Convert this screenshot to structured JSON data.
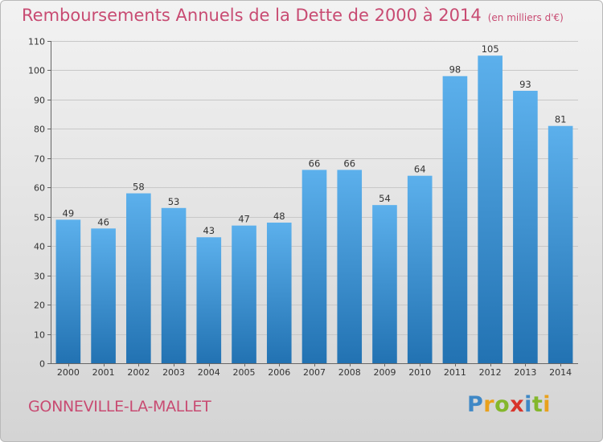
{
  "header": {
    "title": "Remboursements Annuels de la Dette de 2000 à 2014",
    "unit": "(en milliers d'€)"
  },
  "footer": {
    "town": "GONNEVILLE-LA-MALLET"
  },
  "brand": {
    "logo_text": "Proxiti",
    "colors": [
      "#3f88c6",
      "#e9a11c",
      "#84b72c",
      "#d8352c",
      "#3f88c6",
      "#84b72c",
      "#e9a11c"
    ]
  },
  "colors": {
    "title": "#c84b72",
    "bar_top": "#5cb0ec",
    "bar_bottom": "#2272b2",
    "grid": "#c8c8c8"
  },
  "chart_data": {
    "type": "bar",
    "title": "Remboursements Annuels de la Dette de 2000 à 2014",
    "subtitle": "(en milliers d'€)",
    "xlabel": "",
    "ylabel": "",
    "categories": [
      "2000",
      "2001",
      "2002",
      "2003",
      "2004",
      "2005",
      "2006",
      "2007",
      "2008",
      "2009",
      "2010",
      "2011",
      "2012",
      "2013",
      "2014"
    ],
    "values": [
      49,
      46,
      58,
      53,
      43,
      47,
      48,
      66,
      66,
      54,
      64,
      98,
      105,
      93,
      81
    ],
    "ylim": [
      0,
      110
    ],
    "yticks": [
      0,
      10,
      20,
      30,
      40,
      50,
      60,
      70,
      80,
      90,
      100,
      110
    ],
    "grid": true
  }
}
